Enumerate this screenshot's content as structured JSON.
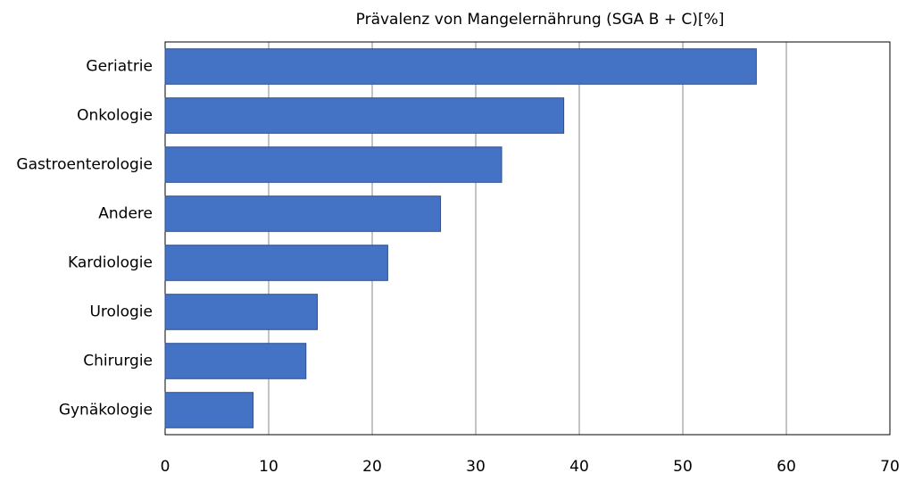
{
  "chart_data": {
    "type": "hbar",
    "title": "Prävalenz von Mangelernährung (SGA B + C)[%]",
    "categories": [
      "Geriatrie",
      "Onkologie",
      "Gastroenterologie",
      "Andere",
      "Kardiologie",
      "Urologie",
      "Chirurgie",
      "Gynäkologie"
    ],
    "values": [
      57.1,
      38.5,
      32.5,
      26.6,
      21.5,
      14.7,
      13.6,
      8.5
    ],
    "color": "#4472c4",
    "xlim": [
      0,
      70
    ],
    "xticks": [
      0,
      10,
      20,
      30,
      40,
      50,
      60,
      70
    ],
    "grid": true
  }
}
